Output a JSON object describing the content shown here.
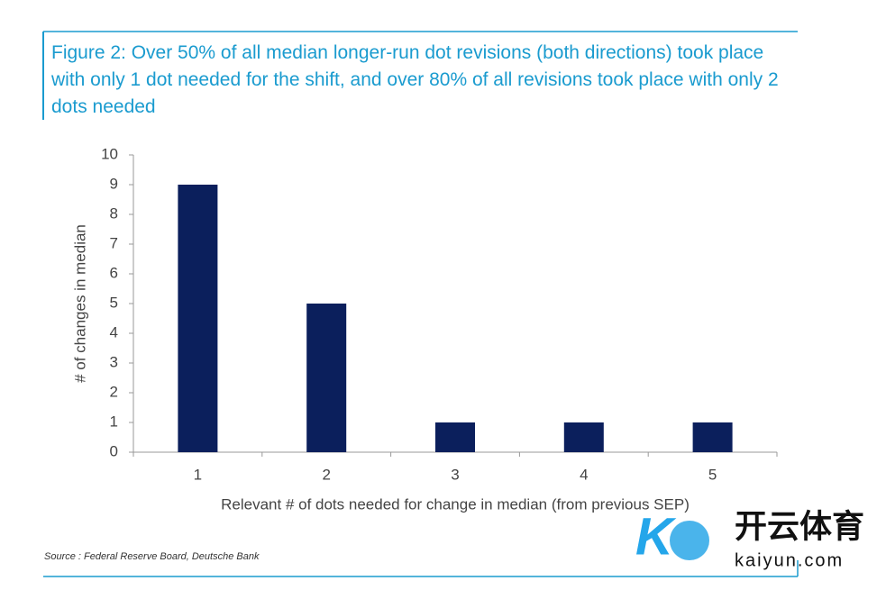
{
  "chart_data": {
    "type": "bar",
    "title": "Figure 2: Over 50% of all median longer-run dot revisions (both directions) took place with only 1 dot needed for the shift, and over 80% of all revisions took place with only 2 dots needed",
    "x_label": "Relevant # of dots needed for change in median (from previous SEP)",
    "y_label": "# of changes in median",
    "categories": [
      "1",
      "2",
      "3",
      "4",
      "5"
    ],
    "values": [
      9,
      5,
      1,
      1,
      1
    ],
    "color": "#0b1f5c",
    "ylim": [
      0,
      10
    ],
    "yticks": [
      0,
      1,
      2,
      3,
      4,
      5,
      6,
      7,
      8,
      9,
      10
    ],
    "grid": false,
    "source": "Source : Federal Reserve Board, Deutsche Bank"
  },
  "watermark": {
    "brand": "开云体育",
    "domain": "kaiyun.com"
  }
}
